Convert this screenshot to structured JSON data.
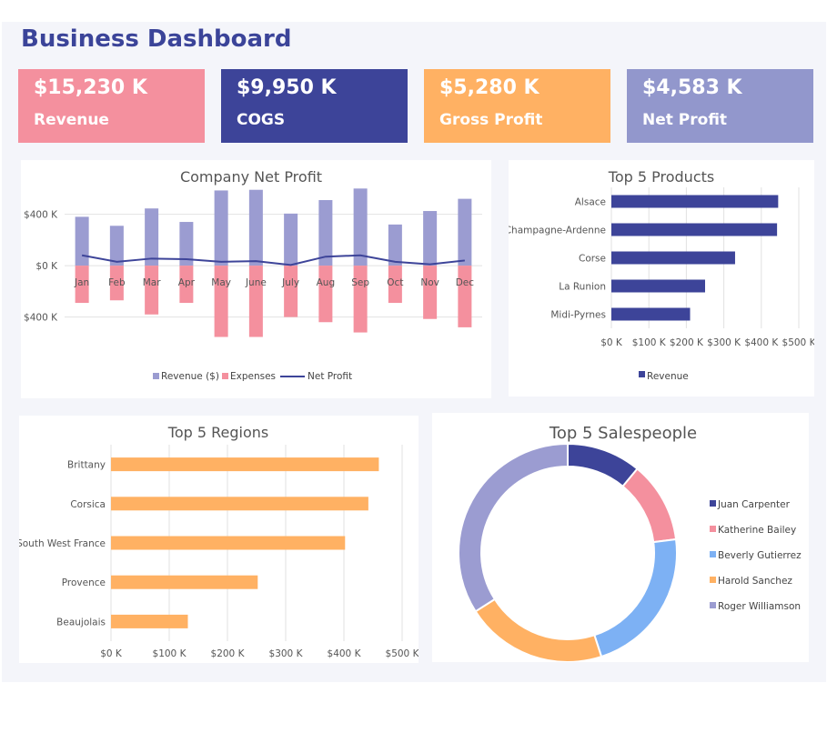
{
  "dashboard": {
    "title": "Business Dashboard"
  },
  "kpis": [
    {
      "value": "$15,230 K",
      "label": "Revenue",
      "color": "#f4909e"
    },
    {
      "value": "$9,950 K",
      "label": "COGS",
      "color": "#3d4499"
    },
    {
      "value": "$5,280 K",
      "label": "Gross Profit",
      "color": "#ffb163"
    },
    {
      "value": "$4,583 K",
      "label": "Net Profit",
      "color": "#9297cc"
    }
  ],
  "colors": {
    "revenue": "#9b9cd1",
    "expenses": "#f4909e",
    "netprofit": "#3d4499",
    "products": "#3d4499",
    "regions": "#ffb163"
  },
  "chart_data": [
    {
      "type": "bar",
      "title": "Company Net Profit",
      "categories": [
        "Jan",
        "Feb",
        "Mar",
        "Apr",
        "May",
        "June",
        "July",
        "Aug",
        "Sep",
        "Oct",
        "Nov",
        "Dec"
      ],
      "series": [
        {
          "name": "Revenue ($)",
          "values": [
            380,
            310,
            445,
            340,
            585,
            590,
            405,
            510,
            600,
            320,
            425,
            520
          ]
        },
        {
          "name": "Expenses",
          "values": [
            -290,
            -270,
            -380,
            -290,
            -555,
            -555,
            -400,
            -440,
            -520,
            -290,
            -415,
            -480
          ]
        },
        {
          "name": "Net Profit",
          "values": [
            80,
            30,
            55,
            50,
            30,
            35,
            5,
            70,
            80,
            30,
            10,
            40
          ]
        }
      ],
      "yticks": [
        400,
        0,
        -400
      ],
      "ytick_labels": [
        "$400 K",
        "$0 K",
        "$400 K"
      ],
      "ylim": [
        -700,
        680
      ]
    },
    {
      "type": "bar",
      "orientation": "horizontal",
      "title": "Top 5 Products",
      "categories": [
        "Alsace",
        "Champagne-Ardenne",
        "Corse",
        "La Runion",
        "Midi-Pyrnes"
      ],
      "series": [
        {
          "name": "Revenue",
          "values": [
            445,
            442,
            330,
            250,
            210
          ]
        }
      ],
      "xticks": [
        0,
        100,
        200,
        300,
        400,
        500
      ],
      "xtick_labels": [
        "$0 K",
        "$100 K",
        "$200 K",
        "$300 K",
        "$400 K",
        "$500 K"
      ],
      "xlim": [
        0,
        500
      ]
    },
    {
      "type": "bar",
      "orientation": "horizontal",
      "title": "Top 5 Regions",
      "categories": [
        "Brittany",
        "Corsica",
        "South West France",
        "Provence",
        "Beaujolais"
      ],
      "values": [
        460,
        442,
        402,
        252,
        132
      ],
      "xticks": [
        0,
        100,
        200,
        300,
        400,
        500
      ],
      "xtick_labels": [
        "$0 K",
        "$100 K",
        "$200 K",
        "$300 K",
        "$400 K",
        "$500 K"
      ],
      "xlim": [
        0,
        500
      ]
    },
    {
      "type": "pie",
      "title": "Top 5 Salespeople",
      "labels": [
        "Juan Carpenter",
        "Katherine Bailey",
        "Beverly Gutierrez",
        "Harold Sanchez",
        "Roger Williamson"
      ],
      "values": [
        11,
        12,
        22,
        21,
        34
      ],
      "colors": [
        "#3d4499",
        "#f4909e",
        "#7db1f4",
        "#ffb163",
        "#9b9cd1"
      ]
    }
  ]
}
